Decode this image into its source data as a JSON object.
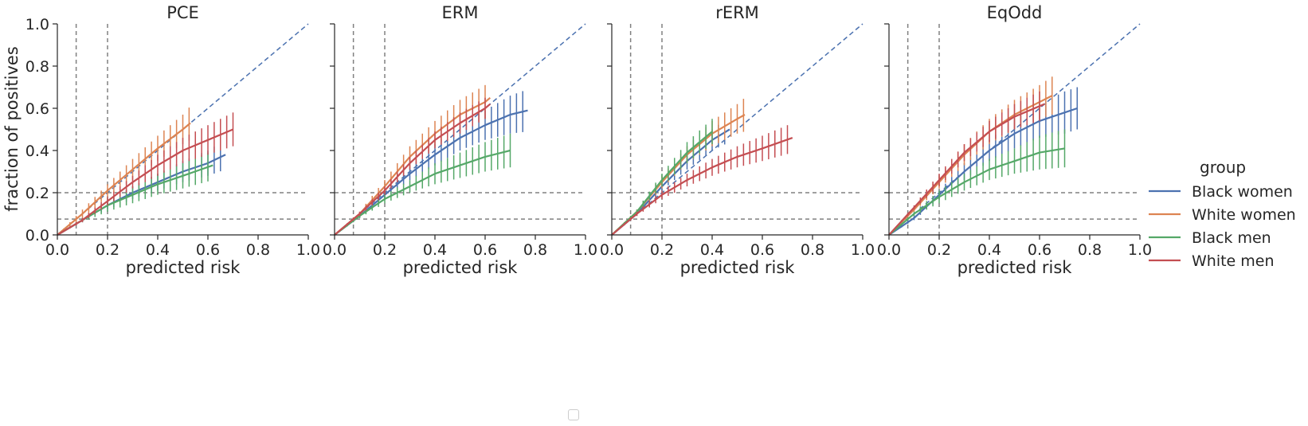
{
  "figure": {
    "ylabel": "fraction of positives",
    "legend": {
      "title": "group",
      "placement": "right",
      "entries": [
        {
          "label": "Black women",
          "color": "#4c72b0"
        },
        {
          "label": "White women",
          "color": "#dd8452"
        },
        {
          "label": "Black men",
          "color": "#55a868"
        },
        {
          "label": "White men",
          "color": "#c44e52"
        }
      ]
    },
    "reference_lines": {
      "diagonal_color": "#4c72b0",
      "threshold_color": "#808080",
      "vertical_x": [
        0.075,
        0.2
      ],
      "horizontal_y": [
        0.075,
        0.2
      ]
    }
  },
  "chart_data": [
    {
      "type": "line",
      "title": "PCE",
      "xlabel": "predicted risk",
      "ylabel": "fraction of positives",
      "xlim": [
        0,
        1
      ],
      "ylim": [
        0,
        1
      ],
      "xticks": [
        "0.0",
        "0.2",
        "0.4",
        "0.6",
        "0.8",
        "1.0"
      ],
      "yticks": [
        "0.0",
        "0.2",
        "0.4",
        "0.6",
        "0.8",
        "1.0"
      ],
      "grid": false,
      "series": [
        {
          "name": "Black women",
          "x": [
            0.0,
            0.1,
            0.2,
            0.3,
            0.4,
            0.5,
            0.6,
            0.67
          ],
          "y": [
            0.0,
            0.07,
            0.14,
            0.2,
            0.25,
            0.3,
            0.34,
            0.38
          ],
          "err": [
            0.0,
            0.01,
            0.02,
            0.03,
            0.04,
            0.05,
            0.06,
            0.07
          ]
        },
        {
          "name": "White women",
          "x": [
            0.0,
            0.1,
            0.2,
            0.3,
            0.4,
            0.5,
            0.53
          ],
          "y": [
            0.0,
            0.1,
            0.21,
            0.31,
            0.41,
            0.5,
            0.53
          ],
          "err": [
            0.0,
            0.02,
            0.03,
            0.05,
            0.06,
            0.07,
            0.08
          ]
        },
        {
          "name": "Black men",
          "x": [
            0.0,
            0.1,
            0.2,
            0.3,
            0.4,
            0.5,
            0.62
          ],
          "y": [
            0.0,
            0.07,
            0.14,
            0.19,
            0.24,
            0.28,
            0.33
          ],
          "err": [
            0.0,
            0.01,
            0.03,
            0.04,
            0.05,
            0.06,
            0.07
          ]
        },
        {
          "name": "White men",
          "x": [
            0.0,
            0.1,
            0.2,
            0.3,
            0.4,
            0.5,
            0.6,
            0.7
          ],
          "y": [
            0.0,
            0.07,
            0.16,
            0.25,
            0.33,
            0.4,
            0.45,
            0.5
          ],
          "err": [
            0.0,
            0.01,
            0.02,
            0.03,
            0.05,
            0.06,
            0.07,
            0.08
          ]
        }
      ]
    },
    {
      "type": "line",
      "title": "ERM",
      "xlabel": "predicted risk",
      "ylabel": "",
      "xlim": [
        0,
        1
      ],
      "ylim": [
        0,
        1
      ],
      "xticks": [
        "0.0",
        "0.2",
        "0.4",
        "0.6",
        "0.8",
        "1.0"
      ],
      "yticks": [
        "0.0",
        "0.2",
        "0.4",
        "0.6",
        "0.8",
        "1.0"
      ],
      "grid": false,
      "series": [
        {
          "name": "Black women",
          "x": [
            0.0,
            0.1,
            0.2,
            0.3,
            0.4,
            0.5,
            0.6,
            0.7,
            0.77
          ],
          "y": [
            0.0,
            0.09,
            0.19,
            0.29,
            0.38,
            0.46,
            0.52,
            0.57,
            0.59
          ],
          "err": [
            0.0,
            0.01,
            0.02,
            0.03,
            0.05,
            0.06,
            0.07,
            0.09,
            0.1
          ]
        },
        {
          "name": "White women",
          "x": [
            0.0,
            0.1,
            0.2,
            0.3,
            0.4,
            0.5,
            0.6,
            0.62
          ],
          "y": [
            0.0,
            0.1,
            0.23,
            0.37,
            0.48,
            0.57,
            0.63,
            0.65
          ],
          "err": [
            0.0,
            0.01,
            0.03,
            0.05,
            0.06,
            0.07,
            0.08,
            0.09
          ]
        },
        {
          "name": "Black men",
          "x": [
            0.0,
            0.1,
            0.2,
            0.3,
            0.4,
            0.5,
            0.6,
            0.7
          ],
          "y": [
            0.0,
            0.09,
            0.17,
            0.23,
            0.29,
            0.33,
            0.37,
            0.4
          ],
          "err": [
            0.0,
            0.01,
            0.02,
            0.03,
            0.05,
            0.06,
            0.07,
            0.08
          ]
        },
        {
          "name": "White men",
          "x": [
            0.0,
            0.1,
            0.2,
            0.3,
            0.4,
            0.5,
            0.6,
            0.62
          ],
          "y": [
            0.0,
            0.1,
            0.21,
            0.34,
            0.45,
            0.53,
            0.6,
            0.62
          ],
          "err": [
            0.0,
            0.01,
            0.02,
            0.03,
            0.04,
            0.05,
            0.05,
            0.05
          ]
        }
      ]
    },
    {
      "type": "line",
      "title": "rERM",
      "xlabel": "predicted risk",
      "ylabel": "",
      "xlim": [
        0,
        1
      ],
      "ylim": [
        0,
        1
      ],
      "xticks": [
        "0.0",
        "0.2",
        "0.4",
        "0.6",
        "0.8",
        "1.0"
      ],
      "yticks": [
        "0.0",
        "0.2",
        "0.4",
        "0.6",
        "0.8",
        "1.0"
      ],
      "grid": false,
      "series": [
        {
          "name": "Black women",
          "x": [
            0.0,
            0.1,
            0.2,
            0.3,
            0.4,
            0.47
          ],
          "y": [
            0.0,
            0.1,
            0.23,
            0.35,
            0.45,
            0.5
          ],
          "err": [
            0.0,
            0.01,
            0.02,
            0.04,
            0.05,
            0.06
          ]
        },
        {
          "name": "White women",
          "x": [
            0.0,
            0.1,
            0.2,
            0.3,
            0.4,
            0.5,
            0.53
          ],
          "y": [
            0.0,
            0.11,
            0.25,
            0.38,
            0.48,
            0.55,
            0.57
          ],
          "err": [
            0.0,
            0.01,
            0.03,
            0.04,
            0.06,
            0.07,
            0.08
          ]
        },
        {
          "name": "Black men",
          "x": [
            0.0,
            0.1,
            0.2,
            0.3,
            0.4
          ],
          "y": [
            0.0,
            0.11,
            0.26,
            0.39,
            0.49
          ],
          "err": [
            0.0,
            0.01,
            0.03,
            0.05,
            0.06
          ]
        },
        {
          "name": "White men",
          "x": [
            0.0,
            0.1,
            0.2,
            0.3,
            0.4,
            0.5,
            0.6,
            0.72
          ],
          "y": [
            0.0,
            0.1,
            0.19,
            0.26,
            0.32,
            0.37,
            0.41,
            0.46
          ],
          "err": [
            0.0,
            0.01,
            0.02,
            0.03,
            0.04,
            0.05,
            0.06,
            0.07
          ]
        }
      ]
    },
    {
      "type": "line",
      "title": "EqOdd",
      "xlabel": "predicted risk",
      "ylabel": "",
      "xlim": [
        0,
        1
      ],
      "ylim": [
        0,
        1
      ],
      "xticks": [
        "0.0",
        "0.2",
        "0.4",
        "0.6",
        "0.8",
        "1.0"
      ],
      "yticks": [
        "0.0",
        "0.2",
        "0.4",
        "0.6",
        "0.8",
        "1.0"
      ],
      "grid": false,
      "series": [
        {
          "name": "Black women",
          "x": [
            0.0,
            0.1,
            0.2,
            0.3,
            0.4,
            0.5,
            0.6,
            0.7,
            0.75
          ],
          "y": [
            0.0,
            0.08,
            0.19,
            0.3,
            0.4,
            0.48,
            0.54,
            0.58,
            0.6
          ],
          "err": [
            0.0,
            0.01,
            0.02,
            0.04,
            0.05,
            0.07,
            0.08,
            0.1,
            0.1
          ]
        },
        {
          "name": "White women",
          "x": [
            0.0,
            0.1,
            0.2,
            0.3,
            0.4,
            0.5,
            0.6,
            0.65
          ],
          "y": [
            0.0,
            0.12,
            0.25,
            0.38,
            0.49,
            0.57,
            0.63,
            0.66
          ],
          "err": [
            0.0,
            0.01,
            0.03,
            0.05,
            0.06,
            0.07,
            0.08,
            0.09
          ]
        },
        {
          "name": "Black men",
          "x": [
            0.0,
            0.1,
            0.2,
            0.3,
            0.4,
            0.5,
            0.6,
            0.7
          ],
          "y": [
            0.0,
            0.1,
            0.18,
            0.25,
            0.31,
            0.35,
            0.39,
            0.41
          ],
          "err": [
            0.0,
            0.01,
            0.03,
            0.04,
            0.05,
            0.06,
            0.08,
            0.09
          ]
        },
        {
          "name": "White men",
          "x": [
            0.0,
            0.1,
            0.2,
            0.3,
            0.4,
            0.5,
            0.6,
            0.62
          ],
          "y": [
            0.0,
            0.13,
            0.26,
            0.39,
            0.49,
            0.56,
            0.61,
            0.62
          ],
          "err": [
            0.0,
            0.01,
            0.03,
            0.04,
            0.05,
            0.06,
            0.07,
            0.07
          ]
        }
      ]
    }
  ]
}
